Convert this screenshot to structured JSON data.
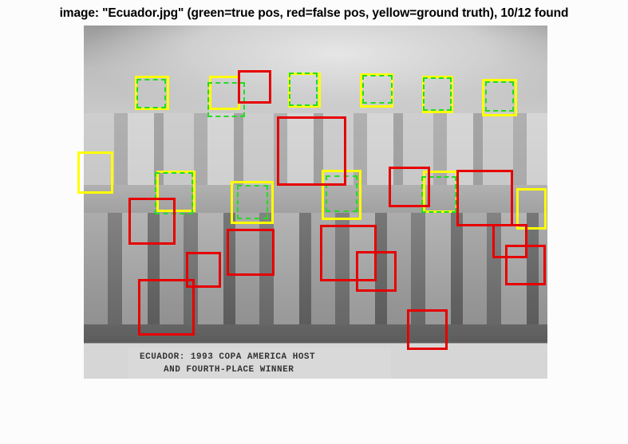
{
  "title": "image: \"Ecuador.jpg\" (green=true pos, red=false pos, yellow=ground truth), 10/12 found",
  "photo": {
    "caption_line1": "ECUADOR: 1993 COPA AMERICA HOST",
    "caption_line2": "AND FOURTH-PLACE WINNER"
  },
  "colors": {
    "true_positive": "#22dd22",
    "false_positive": "#e60000",
    "ground_truth": "#ffff00"
  }
}
